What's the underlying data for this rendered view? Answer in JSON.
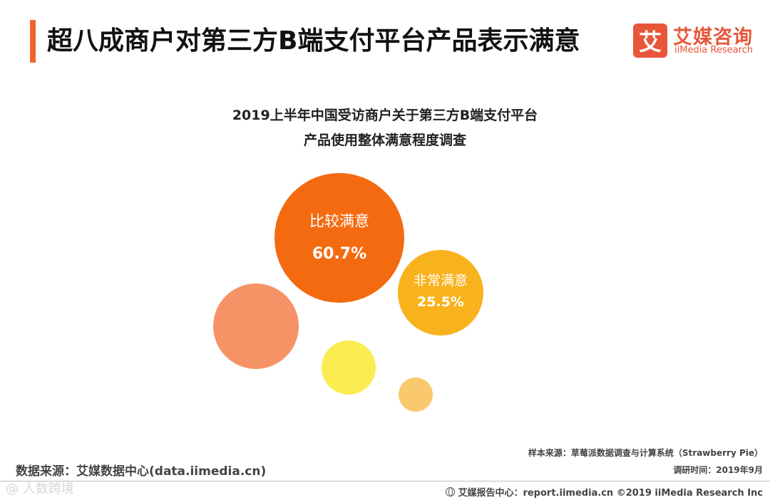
{
  "header": {
    "title": "超八成商户对第三方B端支付平台产品表示满意",
    "logo_mark": "艾",
    "logo_cn": "艾媒咨询",
    "logo_en": "iiMedia Research"
  },
  "chart_data": {
    "type": "bubble",
    "title_line1": "2019上半年中国受访商户关于第三方B端支付平台",
    "title_line2": "产品使用整体满意程度调查",
    "bubbles": [
      {
        "label": "比较满意",
        "value": 60.7,
        "value_text": "60.7%",
        "color": "#f46a10",
        "labeled": true
      },
      {
        "label": "非常满意",
        "value": 25.5,
        "value_text": "25.5%",
        "color": "#f8b21c",
        "labeled": true
      },
      {
        "label": "",
        "value": null,
        "value_text": "",
        "color": "#f69366",
        "labeled": false
      },
      {
        "label": "",
        "value": null,
        "value_text": "",
        "color": "#fbec51",
        "labeled": false
      },
      {
        "label": "",
        "value": null,
        "value_text": "",
        "color": "#fbc96d",
        "labeled": false
      }
    ]
  },
  "footer": {
    "source_left": "数据来源：艾媒数据中心(data.iimedia.cn)",
    "sample_source": "样本来源：草莓派数据调查与计算系统（Strawberry Pie）",
    "survey_date": "调研时间：2019年9月",
    "report_center": "艾媒报告中心：report.iimedia.cn  ©2019  iiMedia Research  Inc",
    "watermark": "@ 人数跨境"
  }
}
